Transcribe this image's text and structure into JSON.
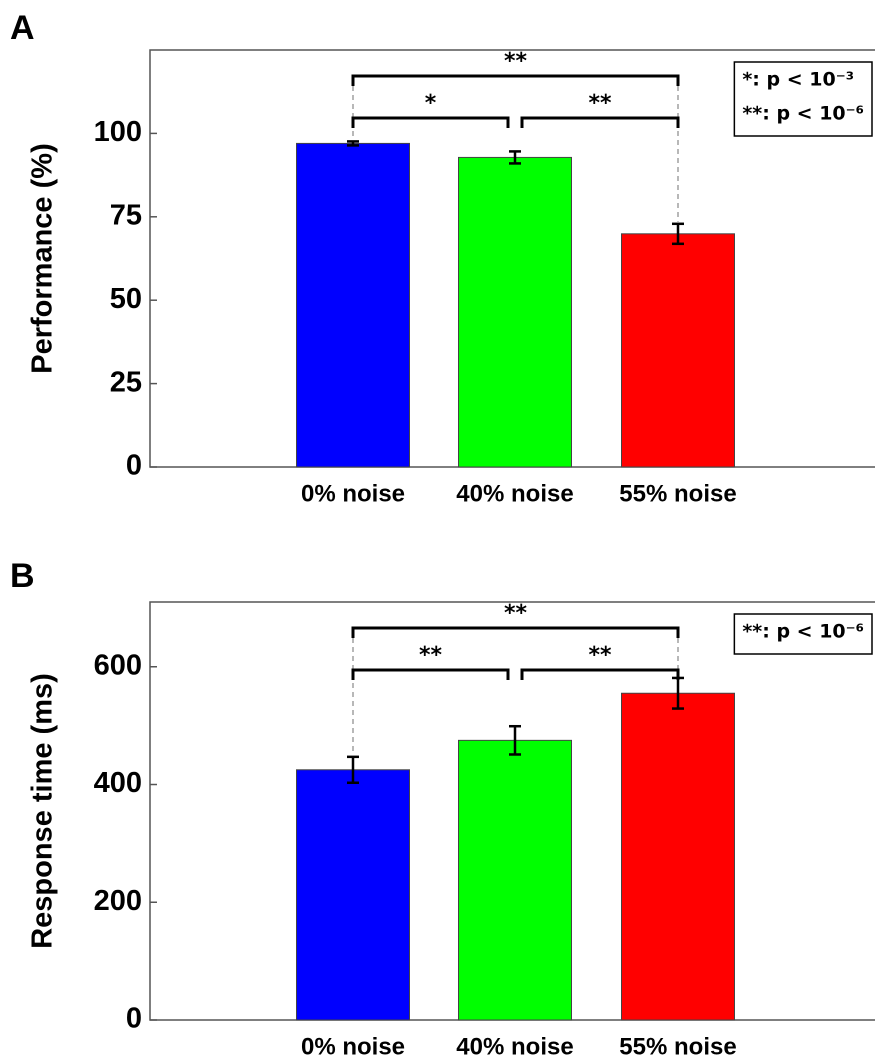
{
  "chart_data": [
    {
      "type": "bar",
      "panel_label": "A",
      "ylabel": "Performance (%)",
      "categories": [
        "0% noise",
        "40% noise",
        "55% noise"
      ],
      "values": [
        97,
        92.8,
        69.9
      ],
      "errors": [
        0.6,
        1.8,
        3
      ],
      "colors": [
        "#0000ff",
        "#00ff00",
        "#ff0000"
      ],
      "ylim": [
        0,
        125
      ],
      "yticks": [
        0,
        25,
        50,
        75,
        100
      ],
      "significance": [
        {
          "between": [
            0,
            2
          ],
          "label": "**"
        },
        {
          "between": [
            0,
            1
          ],
          "label": "*"
        },
        {
          "between": [
            1,
            2
          ],
          "label": "**"
        }
      ],
      "legend": [
        "*: p < 10⁻³",
        "**: p < 10⁻⁶"
      ]
    },
    {
      "type": "bar",
      "panel_label": "B",
      "ylabel": "Response time (ms)",
      "categories": [
        "0% noise",
        "40% noise",
        "55% noise"
      ],
      "values": [
        425,
        475,
        555
      ],
      "errors": [
        22,
        24,
        26
      ],
      "colors": [
        "#0000ff",
        "#00ff00",
        "#ff0000"
      ],
      "ylim": [
        0,
        710
      ],
      "yticks": [
        0,
        200,
        400,
        600
      ],
      "significance": [
        {
          "between": [
            0,
            2
          ],
          "label": "**"
        },
        {
          "between": [
            0,
            1
          ],
          "label": "**"
        },
        {
          "between": [
            1,
            2
          ],
          "label": "**"
        }
      ],
      "legend": [
        "**: p < 10⁻⁶"
      ]
    }
  ]
}
